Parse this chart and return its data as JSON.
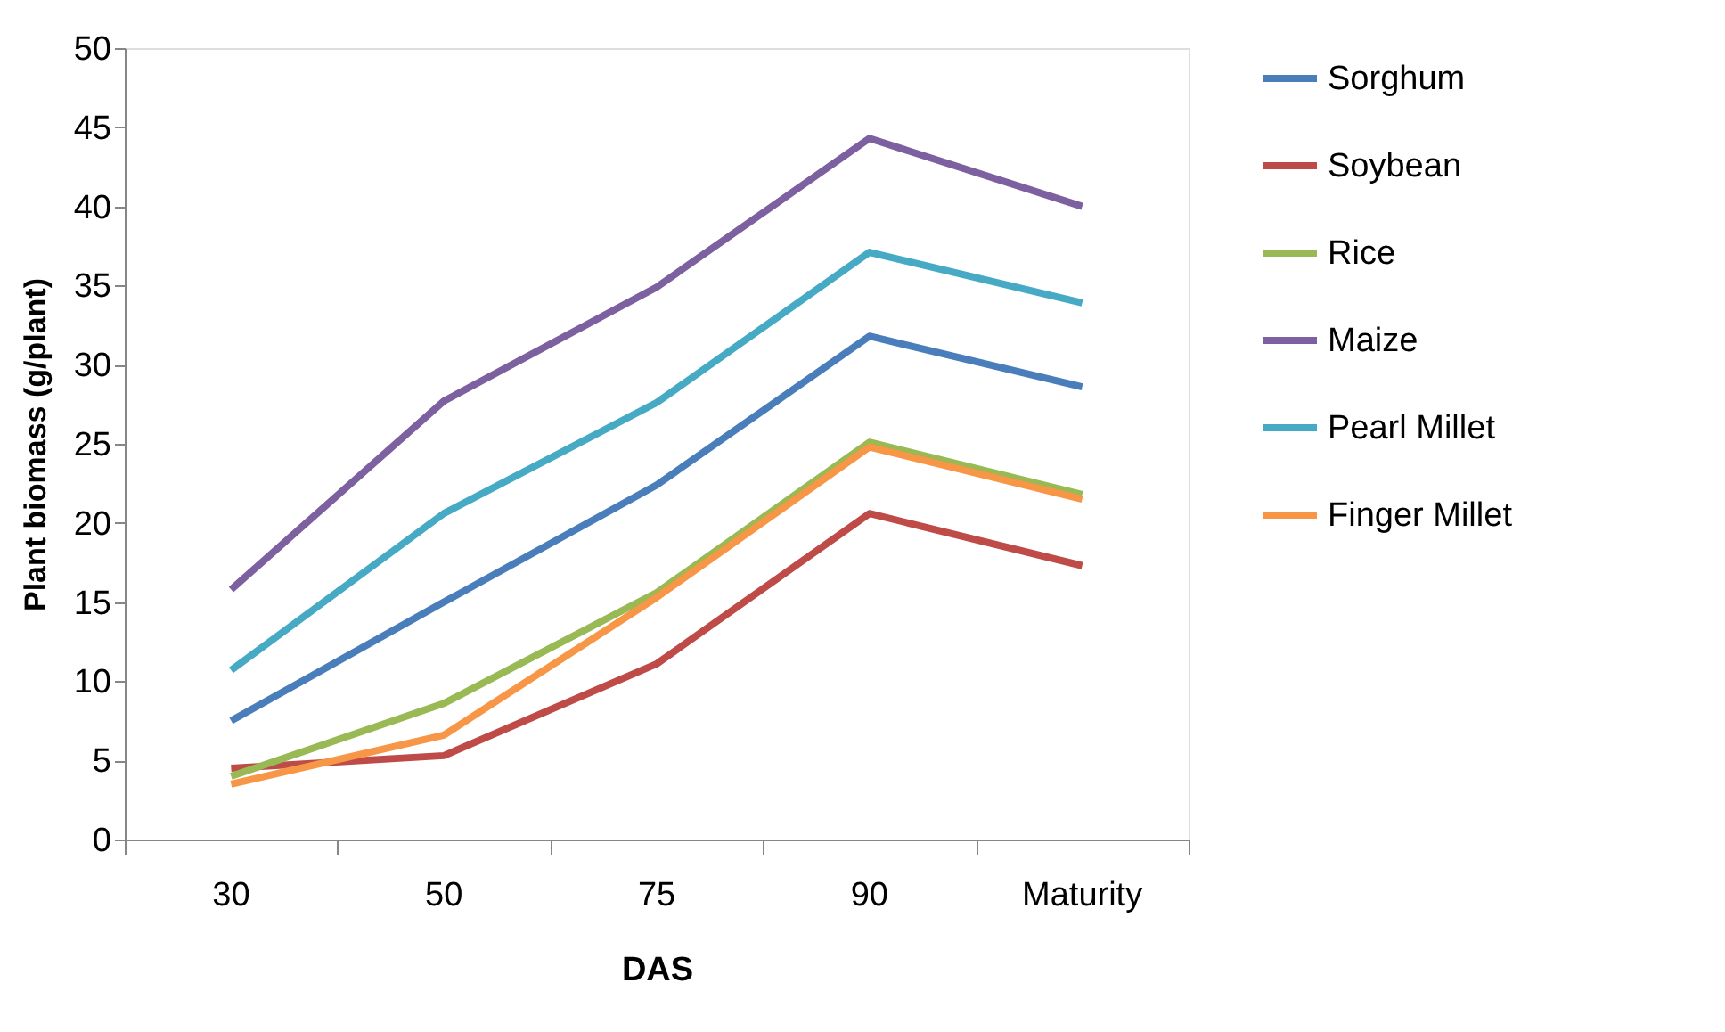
{
  "chart_data": {
    "type": "line",
    "xlabel": "DAS",
    "ylabel": "Plant biomass (g/plant)",
    "categories": [
      "30",
      "50",
      "75",
      "90",
      "Maturity"
    ],
    "ylim": [
      0,
      50
    ],
    "yticks": [
      0,
      5,
      10,
      15,
      20,
      25,
      30,
      35,
      40,
      45,
      50
    ],
    "grid": false,
    "legend": "right",
    "marker": "none",
    "line_style": "solid",
    "series": [
      {
        "name": "Sorghum",
        "color": "#4a7ebb",
        "values": [
          7.5,
          15,
          22.4,
          31.8,
          28.6
        ]
      },
      {
        "name": "Soybean",
        "color": "#be4b48",
        "values": [
          4.5,
          5.3,
          11.1,
          20.6,
          17.3
        ]
      },
      {
        "name": "Rice",
        "color": "#98b954",
        "values": [
          4,
          8.6,
          15.6,
          25.1,
          21.8
        ]
      },
      {
        "name": "Maize",
        "color": "#7d60a0",
        "values": [
          15.8,
          27.7,
          34.9,
          44.3,
          40
        ]
      },
      {
        "name": "Pearl Millet",
        "color": "#46aac5",
        "values": [
          10.7,
          20.6,
          27.6,
          37.1,
          33.9
        ]
      },
      {
        "name": "Finger Millet",
        "color": "#f79646",
        "values": [
          3.5,
          6.6,
          15.3,
          24.8,
          21.5
        ]
      }
    ]
  }
}
